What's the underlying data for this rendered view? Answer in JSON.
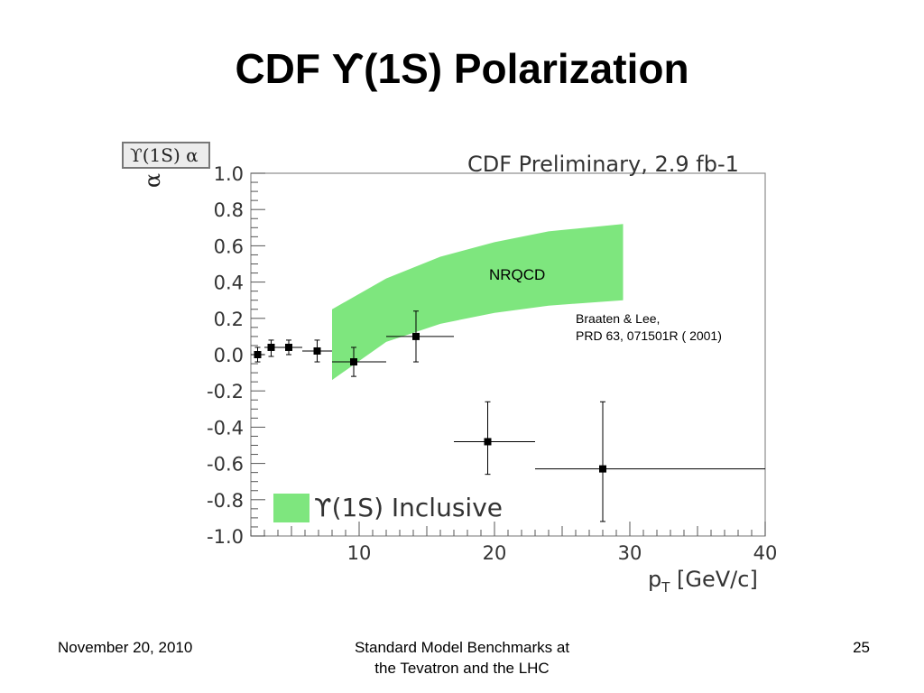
{
  "slide": {
    "title": "CDF ϒ(1S) Polarization",
    "footer_date": "November 20, 2010",
    "footer_center_line1": "Standard Model Benchmarks at",
    "footer_center_line2": "the Tevatron and the LHC",
    "page_number": "25"
  },
  "chart_data": {
    "type": "scatter",
    "title": "CDF Preliminary, 2.9 fb-1",
    "ylabel_box": "ϒ(1S) α",
    "ylabel": "α",
    "xlabel": "p",
    "xlabel_sub": "T",
    "xlabel_unit": " [GeV/c]",
    "xlim": [
      2,
      40
    ],
    "ylim": [
      -1.0,
      1.0
    ],
    "grid": false,
    "x_ticks": [
      10,
      20,
      30,
      40
    ],
    "x_tick_labels": [
      "10",
      "20",
      "30",
      "40"
    ],
    "y_ticks": [
      1.0,
      0.8,
      0.6,
      0.4,
      0.2,
      0.0,
      -0.2,
      -0.4,
      -0.6,
      -0.8,
      -1.0
    ],
    "y_tick_labels": [
      "1.0",
      "0.8",
      "0.6",
      "0.4",
      "0.2",
      "0.0",
      "-0.2",
      "-0.4",
      "-0.6",
      "-0.8",
      "-1.0"
    ],
    "legend": {
      "placement": "bottom-left",
      "label": "ϒ(1S) Inclusive",
      "color": "#7ee67e"
    },
    "band": {
      "label": "NRQCD",
      "color": "#7ee67e",
      "x": [
        8.0,
        12.0,
        16.0,
        20.0,
        24.0,
        29.5
      ],
      "upper": [
        0.25,
        0.42,
        0.54,
        0.62,
        0.68,
        0.72
      ],
      "lower": [
        -0.14,
        0.07,
        0.17,
        0.23,
        0.27,
        0.3
      ]
    },
    "annotations": [
      "Braaten & Lee,",
      "PRD 63, 071501R ( 2001)"
    ],
    "series": [
      {
        "marker_color": "#000000",
        "points": [
          {
            "x": 2.5,
            "y": 0.0,
            "xlo": 2.0,
            "xhi": 3.0,
            "ylo": -0.04,
            "yhi": 0.04
          },
          {
            "x": 3.5,
            "y": 0.04,
            "xlo": 3.0,
            "xhi": 4.0,
            "ylo": -0.01,
            "yhi": 0.08
          },
          {
            "x": 4.8,
            "y": 0.04,
            "xlo": 4.0,
            "xhi": 5.8,
            "ylo": 0.0,
            "yhi": 0.08
          },
          {
            "x": 6.9,
            "y": 0.02,
            "xlo": 5.8,
            "xhi": 8.0,
            "ylo": -0.04,
            "yhi": 0.08
          },
          {
            "x": 9.6,
            "y": -0.04,
            "xlo": 8.0,
            "xhi": 12.0,
            "ylo": -0.12,
            "yhi": 0.04
          },
          {
            "x": 14.2,
            "y": 0.1,
            "xlo": 12.0,
            "xhi": 17.0,
            "ylo": -0.04,
            "yhi": 0.24
          },
          {
            "x": 19.5,
            "y": -0.48,
            "xlo": 17.0,
            "xhi": 23.0,
            "ylo": -0.66,
            "yhi": -0.26
          },
          {
            "x": 28.0,
            "y": -0.63,
            "xlo": 23.0,
            "xhi": 40.0,
            "ylo": -0.92,
            "yhi": -0.26
          }
        ]
      }
    ]
  }
}
